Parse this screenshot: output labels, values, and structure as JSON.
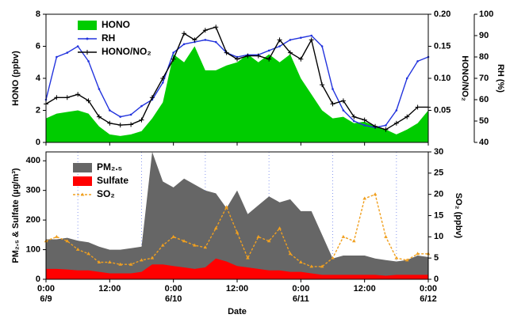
{
  "chart_data": [
    {
      "type": "area-line",
      "ylabel": "HONO (ppbv)",
      "y2label": "HONO/NO₂",
      "y3label": "RH (%)",
      "x": [
        "6/9 0:00",
        "6/9 2:00",
        "6/9 4:00",
        "6/9 6:00",
        "6/9 8:00",
        "6/9 10:00",
        "6/9 12:00",
        "6/9 14:00",
        "6/9 16:00",
        "6/9 18:00",
        "6/9 20:00",
        "6/9 22:00",
        "6/10 0:00",
        "6/10 2:00",
        "6/10 4:00",
        "6/10 6:00",
        "6/10 8:00",
        "6/10 10:00",
        "6/10 12:00",
        "6/10 14:00",
        "6/10 16:00",
        "6/10 18:00",
        "6/10 20:00",
        "6/10 22:00",
        "6/11 0:00",
        "6/11 2:00",
        "6/11 4:00",
        "6/11 6:00",
        "6/11 8:00",
        "6/11 10:00",
        "6/11 12:00",
        "6/11 14:00",
        "6/11 16:00",
        "6/11 18:00",
        "6/11 20:00",
        "6/11 22:00",
        "6/12 0:00"
      ],
      "ylim": [
        0,
        8
      ],
      "yticks": [
        0,
        2,
        4,
        6,
        8
      ],
      "y2lim": [
        0,
        0.2
      ],
      "y2ticks": [
        {
          "value": 0.05,
          "label": "0.05"
        },
        {
          "value": 0.1,
          "label": "0.10"
        },
        {
          "value": 0.15,
          "label": "0.15"
        },
        {
          "value": 0.2,
          "label": "0.20"
        }
      ],
      "y3lim": [
        40,
        100
      ],
      "y3ticks": [
        40,
        50,
        60,
        70,
        80,
        90,
        100
      ],
      "series": [
        {
          "name": "HONO",
          "color": "#00cc00",
          "style": "area",
          "axis": "y",
          "values": [
            1.5,
            1.8,
            1.9,
            2.0,
            1.8,
            1.0,
            0.5,
            0.4,
            0.5,
            0.7,
            1.5,
            2.5,
            5.5,
            5.0,
            6.0,
            4.5,
            4.5,
            4.8,
            5.0,
            5.5,
            5.0,
            5.5,
            5.0,
            5.5,
            4.0,
            3.0,
            2.0,
            1.5,
            1.6,
            1.2,
            1.3,
            1.0,
            0.8,
            0.5,
            0.8,
            1.2,
            2.0
          ]
        },
        {
          "name": "RH",
          "color": "#2233dd",
          "style": "line",
          "marker": "dot",
          "axis": "y3",
          "values": [
            60,
            80,
            82,
            85,
            78,
            65,
            55,
            52,
            53,
            57,
            60,
            68,
            82,
            86,
            87,
            88,
            87,
            82,
            80,
            81,
            81,
            83,
            85,
            88,
            89,
            90,
            85,
            65,
            55,
            50,
            48,
            47,
            48,
            55,
            70,
            78,
            80
          ]
        },
        {
          "name": "HONO/NO₂",
          "color": "#000000",
          "style": "line",
          "marker": "cross",
          "axis": "y2",
          "values": [
            0.06,
            0.07,
            0.07,
            0.075,
            0.065,
            0.04,
            0.03,
            0.027,
            0.028,
            0.035,
            0.07,
            0.1,
            0.13,
            0.17,
            0.16,
            0.175,
            0.18,
            0.14,
            0.13,
            0.135,
            0.135,
            0.13,
            0.16,
            0.14,
            0.13,
            0.16,
            0.09,
            0.06,
            0.065,
            0.04,
            0.035,
            0.025,
            0.02,
            0.03,
            0.04,
            0.055,
            0.055
          ]
        }
      ]
    },
    {
      "type": "area-line",
      "ylabel": "PM₂.₅ & Sulfate (µg/m³)",
      "y2label": "SO₂ (ppbv)",
      "xlabel": "Date",
      "x": [
        "6/9 0:00",
        "6/9 2:00",
        "6/9 4:00",
        "6/9 6:00",
        "6/9 8:00",
        "6/9 10:00",
        "6/9 12:00",
        "6/9 14:00",
        "6/9 16:00",
        "6/9 18:00",
        "6/9 20:00",
        "6/9 22:00",
        "6/10 0:00",
        "6/10 2:00",
        "6/10 4:00",
        "6/10 6:00",
        "6/10 8:00",
        "6/10 10:00",
        "6/10 12:00",
        "6/10 14:00",
        "6/10 16:00",
        "6/10 18:00",
        "6/10 20:00",
        "6/10 22:00",
        "6/11 0:00",
        "6/11 2:00",
        "6/11 4:00",
        "6/11 6:00",
        "6/11 8:00",
        "6/11 10:00",
        "6/11 12:00",
        "6/11 14:00",
        "6/11 16:00",
        "6/11 18:00",
        "6/11 20:00",
        "6/11 22:00",
        "6/12 0:00"
      ],
      "ylim": [
        0,
        430
      ],
      "yticks": [
        0,
        100,
        200,
        300,
        400
      ],
      "y2lim": [
        0,
        30
      ],
      "y2ticks": [
        0,
        5,
        10,
        15,
        20,
        25,
        30
      ],
      "xticks": [
        {
          "value": "6/9 0:00",
          "label": "0:00"
        },
        {
          "value": "6/9 12:00",
          "label": "12:00"
        },
        {
          "value": "6/10 0:00",
          "label": "0:00"
        },
        {
          "value": "6/10 12:00",
          "label": "12:00"
        },
        {
          "value": "6/11 0:00",
          "label": "0:00"
        },
        {
          "value": "6/11 12:00",
          "label": "12:00"
        },
        {
          "value": "6/12 0:00",
          "label": "0:00"
        }
      ],
      "date_labels": [
        {
          "value": "6/9 0:00",
          "label": "6/9"
        },
        {
          "value": "6/10 0:00",
          "label": "6/10"
        },
        {
          "value": "6/11 0:00",
          "label": "6/11"
        },
        {
          "value": "6/12 0:00",
          "label": "6/12"
        }
      ],
      "vgrid": [
        "6/9 6:00",
        "6/9 18:00",
        "6/10 6:00",
        "6/10 18:00",
        "6/11 6:00",
        "6/11 18:00"
      ],
      "series": [
        {
          "name": "PM₂.₅",
          "color": "#666666",
          "style": "area",
          "axis": "y",
          "values": [
            135,
            135,
            140,
            130,
            125,
            110,
            100,
            100,
            105,
            110,
            430,
            330,
            310,
            340,
            320,
            300,
            290,
            240,
            300,
            220,
            250,
            280,
            260,
            270,
            230,
            230,
            150,
            70,
            80,
            80,
            80,
            70,
            65,
            60,
            65,
            80,
            75
          ]
        },
        {
          "name": "Sulfate",
          "color": "#ff0000",
          "style": "area",
          "axis": "y",
          "values": [
            35,
            35,
            33,
            30,
            30,
            25,
            20,
            20,
            20,
            25,
            50,
            50,
            45,
            40,
            35,
            40,
            70,
            60,
            45,
            40,
            35,
            30,
            30,
            25,
            25,
            20,
            15,
            15,
            15,
            15,
            15,
            15,
            12,
            15,
            15,
            15,
            15
          ]
        },
        {
          "name": "SO₂",
          "color": "#f0a020",
          "style": "line",
          "marker": "triangle",
          "dashed": true,
          "axis": "y2",
          "values": [
            9,
            10,
            9,
            7,
            6,
            4,
            4,
            3.5,
            3.5,
            4.5,
            5,
            8,
            10,
            9,
            8,
            7.5,
            12,
            17,
            11,
            5,
            10,
            9,
            12,
            6,
            4,
            3,
            3,
            5,
            10,
            9,
            19,
            20,
            10,
            5,
            4.5,
            6,
            6
          ]
        }
      ]
    }
  ]
}
